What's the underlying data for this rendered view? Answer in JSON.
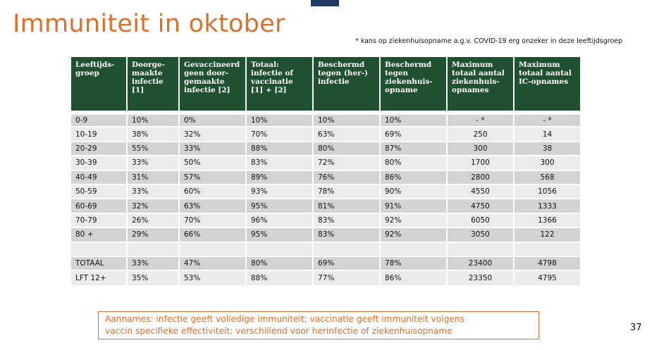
{
  "slide": {
    "title": "Immuniteit in oktober",
    "footnote": "* kans op ziekenhuisopname a.g.v. COVID-19 erg onzeker in deze leeftijdsgroep",
    "page_number": "37",
    "accent_color": "#d9702e",
    "header_color": "#1f5130"
  },
  "table": {
    "headers": [
      [
        "Leeftijds-",
        "groep"
      ],
      [
        "Doorge-",
        "maakte",
        "infectie",
        "[1]"
      ],
      [
        "Gevaccineerd",
        "geen door-",
        "gemaakte",
        "infectie [2]"
      ],
      [
        "Totaal:",
        "infectie of",
        "vaccinatie",
        "[1] + [2]"
      ],
      [
        "Beschermd",
        "tegen (her-)",
        "infectie"
      ],
      [
        "Beschermd",
        "tegen",
        "ziekenhuis-",
        "opname"
      ],
      [
        "Maximum",
        "totaal aantal",
        "ziekenhuis-",
        "opnames"
      ],
      [
        "Maximum",
        "totaal aantal",
        "IC-opnames"
      ]
    ],
    "rows": [
      [
        "0-9",
        "10%",
        "0%",
        "10%",
        "10%",
        "10%",
        "- *",
        "- *"
      ],
      [
        "10-19",
        "38%",
        "32%",
        "70%",
        "63%",
        "69%",
        "250",
        "14"
      ],
      [
        "20-29",
        "55%",
        "33%",
        "88%",
        "80%",
        "87%",
        "300",
        "38"
      ],
      [
        "30-39",
        "33%",
        "50%",
        "83%",
        "72%",
        "80%",
        "1700",
        "300"
      ],
      [
        "40-49",
        "31%",
        "57%",
        "89%",
        "76%",
        "86%",
        "2800",
        "568"
      ],
      [
        "50-59",
        "33%",
        "60%",
        "93%",
        "78%",
        "90%",
        "4550",
        "1056"
      ],
      [
        "60-69",
        "32%",
        "63%",
        "95%",
        "81%",
        "91%",
        "4750",
        "1333"
      ],
      [
        "70-79",
        "26%",
        "70%",
        "96%",
        "83%",
        "92%",
        "6050",
        "1366"
      ],
      [
        "80 +",
        "29%",
        "66%",
        "95%",
        "83%",
        "92%",
        "3050",
        "122"
      ],
      [
        "",
        "",
        "",
        "",
        "",
        "",
        "",
        ""
      ],
      [
        "TOTAAL",
        "33%",
        "47%",
        "80%",
        "69%",
        "78%",
        "23400",
        "4798"
      ],
      [
        "LFT 12+",
        "35%",
        "53%",
        "88%",
        "77%",
        "86%",
        "23350",
        "4795"
      ]
    ]
  },
  "assumptions": {
    "line1": "Aannames: infectie geeft volledige immuniteit; vaccinatie geeft immuniteit volgens",
    "line2": "vaccin specifieke effectiviteit; verschillend voor herinfectie of ziekenhuisopname"
  }
}
